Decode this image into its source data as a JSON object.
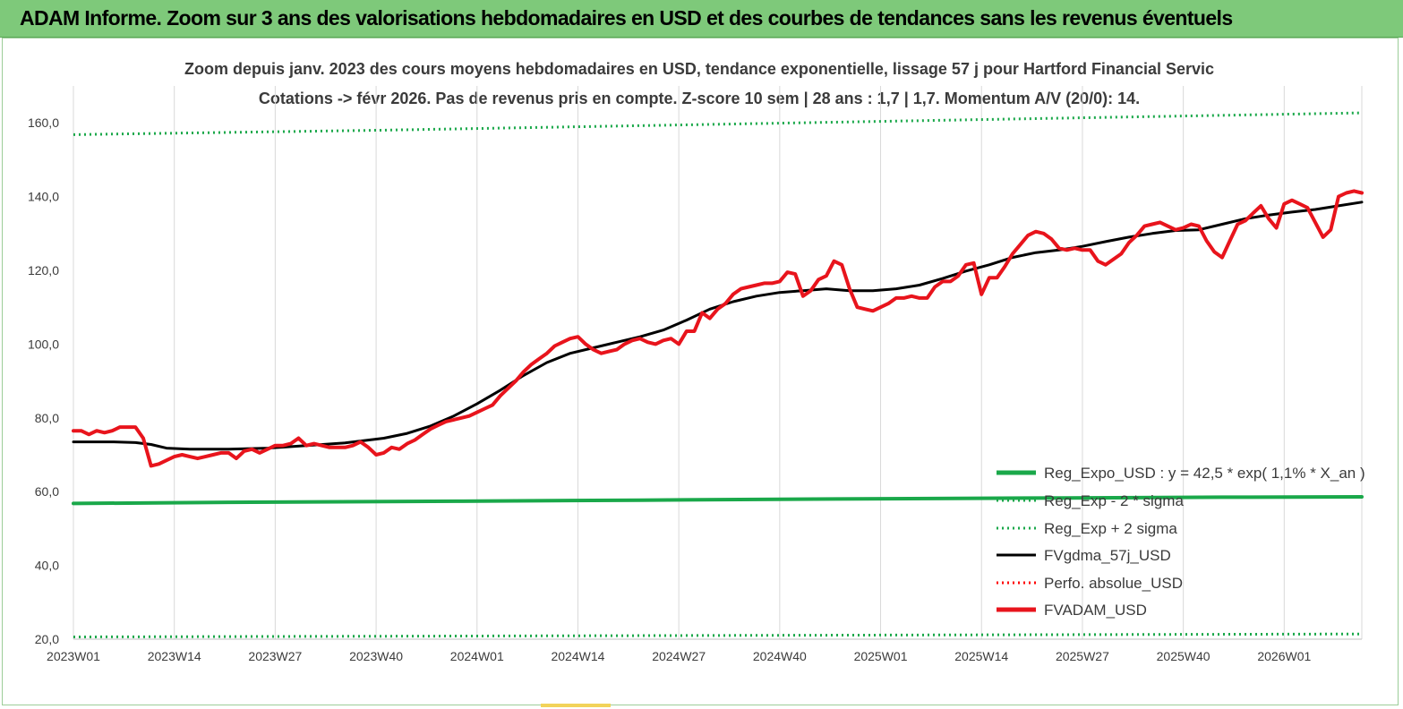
{
  "header": {
    "title": "ADAM Informe. Zoom sur 3 ans des valorisations hebdomadaires en USD et des courbes de tendances sans les revenus éventuels",
    "background": "#7ec97a"
  },
  "chart_data": {
    "type": "line",
    "title_line1": "Zoom depuis janv. 2023 des cours moyens hebdomadaires en USD, tendance exponentielle, lissage 57 j pour Hartford Financial Servic",
    "title_line2": "Cotations -> févr 2026.  Pas de revenus pris en compte. Z-score 10 sem  | 28 ans : 1,7 | 1,7. Momentum A/V (20/0): 14.",
    "ylim": [
      20,
      170
    ],
    "y_ticks": [
      "20,0",
      "40,0",
      "60,0",
      "80,0",
      "100,0",
      "120,0",
      "140,0",
      "160,0"
    ],
    "y_tick_values": [
      20,
      40,
      60,
      80,
      100,
      120,
      140,
      160
    ],
    "x_ticks": [
      "2023W01",
      "2023W14",
      "2023W27",
      "2023W40",
      "2024W01",
      "2024W14",
      "2024W27",
      "2024W40",
      "2025W01",
      "2025W14",
      "2025W27",
      "2025W40",
      "2026W01"
    ],
    "x_tick_index": [
      0,
      13,
      26,
      39,
      52,
      65,
      78,
      91,
      104,
      117,
      130,
      143,
      156
    ],
    "x_count": 167,
    "grid": "vertical",
    "legend_position": "bottom-right",
    "series": [
      {
        "name": "Reg_Expo_USD : y = 42,5 * exp( 1,1% *  X_an )",
        "color": "#1aa84a",
        "style": "solid-thick",
        "x": [
          0,
          20,
          50,
          73,
          98,
          128,
          148,
          166
        ],
        "values": [
          56.8,
          57.1,
          57.4,
          57.7,
          58.0,
          58.3,
          58.5,
          58.6
        ]
      },
      {
        "name": "Reg_Exp - 2 * sigma",
        "color": "#1aa84a",
        "style": "dotted",
        "x": [
          0,
          166
        ],
        "values": [
          20.6,
          21.4
        ]
      },
      {
        "name": "Reg_Exp + 2 sigma",
        "color": "#1aa84a",
        "style": "dotted",
        "x": [
          0,
          40,
          80,
          120,
          166
        ],
        "values": [
          156.8,
          158.0,
          159.5,
          161.0,
          162.7
        ]
      },
      {
        "name": "FVgdma_57j_USD",
        "color": "#000000",
        "style": "solid",
        "x": [
          0,
          2,
          5,
          8,
          10,
          12,
          15,
          20,
          25,
          30,
          35,
          40,
          43,
          46,
          49,
          52,
          55,
          58,
          61,
          64,
          67,
          70,
          73,
          76,
          79,
          82,
          85,
          88,
          91,
          94,
          97,
          100,
          103,
          106,
          109,
          112,
          115,
          118,
          121,
          124,
          127,
          130,
          133,
          136,
          139,
          142,
          145,
          148,
          151,
          154,
          157,
          160,
          163,
          166
        ],
        "values": [
          73.5,
          73.5,
          73.5,
          73.3,
          72.8,
          71.8,
          71.5,
          71.5,
          71.8,
          72.5,
          73.2,
          74.5,
          75.8,
          77.8,
          80.5,
          83.8,
          87.5,
          91.5,
          95.0,
          97.5,
          99.0,
          100.5,
          102.0,
          103.8,
          106.5,
          109.5,
          111.5,
          113.0,
          114.0,
          114.5,
          115.0,
          114.5,
          114.5,
          115.0,
          116.0,
          117.8,
          119.8,
          121.5,
          123.5,
          124.8,
          125.5,
          126.5,
          127.8,
          129.0,
          130.0,
          130.8,
          131.0,
          132.5,
          134.0,
          135.0,
          135.8,
          136.5,
          137.5,
          138.5
        ]
      },
      {
        "name": "Perfo. absolue_USD",
        "color": "#ff0000",
        "style": "dotted",
        "x": [],
        "values": []
      },
      {
        "name": "FVADAM_USD",
        "color": "#e8141c",
        "style": "solid-thick",
        "x": [
          0,
          1,
          2,
          3,
          4,
          5,
          6,
          7,
          8,
          9,
          10,
          11,
          12,
          13,
          14,
          15,
          16,
          17,
          18,
          19,
          20,
          21,
          22,
          23,
          24,
          25,
          26,
          27,
          28,
          29,
          30,
          31,
          32,
          33,
          34,
          35,
          36,
          37,
          38,
          39,
          40,
          41,
          42,
          43,
          44,
          45,
          46,
          47,
          48,
          49,
          50,
          51,
          52,
          53,
          54,
          55,
          56,
          57,
          58,
          59,
          60,
          61,
          62,
          63,
          64,
          65,
          66,
          67,
          68,
          69,
          70,
          71,
          72,
          73,
          74,
          75,
          76,
          77,
          78,
          79,
          80,
          81,
          82,
          83,
          84,
          85,
          86,
          87,
          88,
          89,
          90,
          91,
          92,
          93,
          94,
          95,
          96,
          97,
          98,
          99,
          100,
          101,
          102,
          103,
          104,
          105,
          106,
          107,
          108,
          109,
          110,
          111,
          112,
          113,
          114,
          115,
          116,
          117,
          118,
          119,
          120,
          121,
          122,
          123,
          124,
          125,
          126,
          127,
          128,
          129,
          130,
          131,
          132,
          133,
          134,
          135,
          136,
          137,
          138,
          139,
          140,
          141,
          142,
          143,
          144,
          145,
          146,
          147,
          148,
          149,
          150,
          151,
          152,
          153,
          154,
          155,
          156,
          157,
          158,
          159,
          160,
          161,
          162,
          163,
          164,
          165,
          166
        ],
        "values": [
          76.5,
          76.5,
          75.5,
          76.5,
          76.0,
          76.5,
          77.5,
          77.5,
          77.5,
          74.5,
          67.0,
          67.5,
          68.5,
          69.5,
          70.0,
          69.5,
          69.0,
          69.5,
          70.0,
          70.5,
          70.5,
          69.0,
          71.0,
          71.5,
          70.5,
          71.5,
          72.5,
          72.5,
          73.0,
          74.5,
          72.5,
          73.0,
          72.5,
          72.0,
          72.0,
          72.0,
          72.5,
          73.5,
          72.0,
          70.0,
          70.5,
          72.0,
          71.5,
          73.0,
          74.0,
          75.5,
          77.0,
          78.0,
          79.0,
          79.5,
          80.0,
          80.5,
          81.5,
          82.5,
          83.5,
          86.0,
          88.0,
          90.0,
          92.5,
          94.5,
          96.0,
          97.5,
          99.5,
          100.5,
          101.5,
          102.0,
          100.0,
          98.5,
          97.5,
          98.0,
          98.5,
          100.0,
          101.0,
          101.5,
          100.5,
          100.0,
          101.0,
          101.5,
          100.0,
          103.5,
          103.5,
          108.5,
          107.0,
          109.5,
          111.0,
          113.5,
          115.0,
          115.5,
          116.0,
          116.5,
          116.5,
          117.0,
          119.5,
          119.0,
          113.0,
          114.5,
          117.5,
          118.5,
          122.5,
          121.5,
          115.0,
          110.0,
          109.5,
          109.0,
          110.0,
          111.0,
          112.5,
          112.5,
          113.0,
          112.5,
          112.5,
          115.5,
          117.0,
          117.0,
          118.5,
          121.5,
          122.0,
          113.5,
          118.0,
          118.0,
          121.0,
          124.5,
          127.0,
          129.5,
          130.5,
          130.0,
          128.5,
          126.0,
          125.5,
          126.0,
          125.5,
          125.5,
          122.5,
          121.5,
          123.0,
          124.5,
          127.5,
          129.5,
          132.0,
          132.5,
          133.0,
          132.0,
          131.0,
          131.5,
          132.5,
          132.0,
          128.0,
          125.0,
          123.5,
          128.0,
          132.5,
          133.5,
          135.5,
          137.5,
          134.0,
          131.5,
          138.0,
          139.0,
          138.0,
          137.0,
          133.0,
          129.0,
          131.0,
          140.0,
          141.0,
          141.5,
          141.0
        ]
      }
    ]
  }
}
